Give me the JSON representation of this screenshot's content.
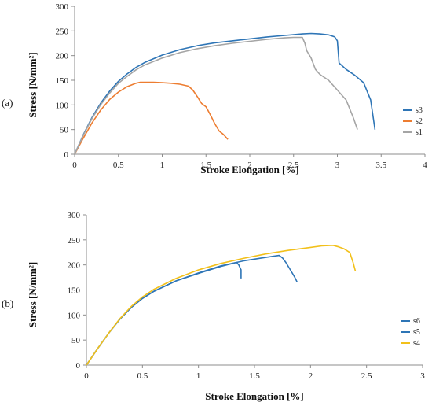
{
  "chart_data": [
    {
      "type": "line",
      "panel_label": "(a)",
      "xlabel": "Stroke Elongation [%]",
      "ylabel": "Stress  [N/mm²]",
      "xlim": [
        0,
        4
      ],
      "ylim": [
        0,
        300
      ],
      "xticks": [
        "0",
        "0.5",
        "1",
        "1.5",
        "2",
        "2.5",
        "3",
        "3.5",
        "4"
      ],
      "yticks": [
        "0",
        "50",
        "100",
        "150",
        "200",
        "250",
        "300"
      ],
      "grid": false,
      "legend_position": "right",
      "legend": [
        "s3",
        "s2",
        "s1"
      ],
      "series": [
        {
          "name": "s3",
          "color": "#2E75B6",
          "x": [
            0,
            0.1,
            0.2,
            0.3,
            0.4,
            0.5,
            0.6,
            0.7,
            0.8,
            1.0,
            1.2,
            1.4,
            1.6,
            1.8,
            2.0,
            2.2,
            2.4,
            2.6,
            2.7,
            2.8,
            2.9,
            2.97,
            3.0,
            3.02,
            3.1,
            3.2,
            3.3,
            3.38,
            3.43
          ],
          "y": [
            0,
            40,
            75,
            104,
            128,
            148,
            163,
            176,
            186,
            201,
            212,
            220,
            226,
            230,
            234,
            238,
            241,
            244,
            245,
            244,
            242,
            238,
            230,
            185,
            172,
            160,
            145,
            110,
            50
          ]
        },
        {
          "name": "s2",
          "color": "#ED7D31",
          "x": [
            0,
            0.1,
            0.2,
            0.3,
            0.4,
            0.5,
            0.6,
            0.7,
            0.75,
            0.8,
            0.9,
            1.0,
            1.1,
            1.2,
            1.3,
            1.35,
            1.4,
            1.45,
            1.5,
            1.55,
            1.6,
            1.65,
            1.7,
            1.75
          ],
          "y": [
            0,
            33,
            64,
            90,
            111,
            126,
            137,
            144,
            146,
            146,
            146,
            145,
            144,
            142,
            138,
            130,
            117,
            103,
            96,
            80,
            62,
            47,
            40,
            30
          ]
        },
        {
          "name": "s1",
          "color": "#A5A5A5",
          "x": [
            0,
            0.1,
            0.2,
            0.3,
            0.4,
            0.5,
            0.6,
            0.7,
            0.8,
            1.0,
            1.2,
            1.4,
            1.6,
            1.8,
            2.0,
            2.2,
            2.4,
            2.5,
            2.6,
            2.63,
            2.65,
            2.7,
            2.75,
            2.8,
            2.9,
            3.0,
            3.1,
            3.18,
            3.23
          ],
          "y": [
            0,
            39,
            73,
            101,
            124,
            144,
            158,
            171,
            181,
            195,
            206,
            214,
            220,
            225,
            229,
            233,
            236,
            237,
            237,
            225,
            210,
            195,
            172,
            162,
            150,
            130,
            110,
            75,
            50
          ]
        }
      ]
    },
    {
      "type": "line",
      "panel_label": "(b)",
      "xlabel": "Stroke Elongation [%]",
      "ylabel": "Stress  [N/mm²]",
      "xlim": [
        0,
        3
      ],
      "ylim": [
        0,
        300
      ],
      "xticks": [
        "0",
        "0.5",
        "1",
        "1.5",
        "2",
        "2.5",
        "3"
      ],
      "yticks": [
        "0",
        "50",
        "100",
        "150",
        "200",
        "250",
        "300"
      ],
      "grid": false,
      "legend_position": "right",
      "legend": [
        "s6",
        "s5",
        "s4"
      ],
      "series": [
        {
          "name": "s6",
          "color": "#2E75B6",
          "x": [
            0,
            0.1,
            0.2,
            0.3,
            0.4,
            0.5,
            0.6,
            0.8,
            1.0,
            1.2,
            1.34,
            1.36,
            1.38,
            1.38
          ],
          "y": [
            0,
            33,
            64,
            92,
            115,
            133,
            147,
            168,
            183,
            197,
            205,
            200,
            190,
            173
          ]
        },
        {
          "name": "s5",
          "color": "#2E75B6",
          "x": [
            0,
            0.1,
            0.2,
            0.3,
            0.4,
            0.5,
            0.6,
            0.8,
            1.0,
            1.2,
            1.4,
            1.6,
            1.72,
            1.75,
            1.78,
            1.82,
            1.86,
            1.88
          ],
          "y": [
            0,
            33,
            64,
            92,
            115,
            133,
            147,
            168,
            184,
            198,
            208,
            215,
            219,
            214,
            205,
            190,
            175,
            166
          ]
        },
        {
          "name": "s4",
          "color": "#F2C01A",
          "x": [
            0,
            0.1,
            0.2,
            0.3,
            0.4,
            0.5,
            0.6,
            0.8,
            1.0,
            1.2,
            1.4,
            1.6,
            1.8,
            2.0,
            2.1,
            2.2,
            2.25,
            2.3,
            2.35,
            2.38,
            2.4
          ],
          "y": [
            0,
            33,
            64,
            93,
            117,
            136,
            151,
            173,
            190,
            203,
            213,
            222,
            229,
            235,
            238,
            239,
            236,
            232,
            225,
            205,
            188
          ]
        }
      ]
    }
  ]
}
